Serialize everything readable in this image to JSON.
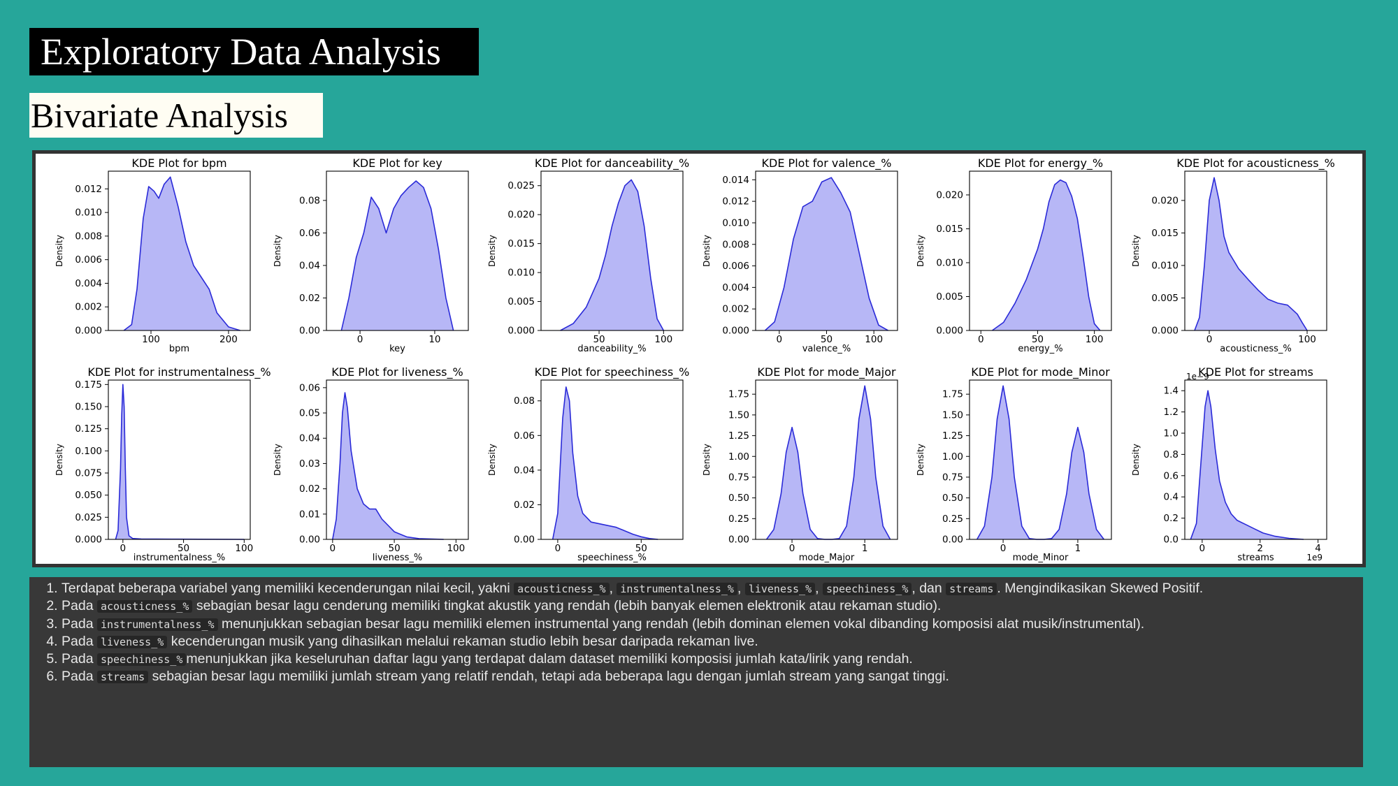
{
  "slide": {
    "title": "Exploratory Data Analysis",
    "subtitle": "Bivariate Analysis"
  },
  "colors": {
    "background": "#26a69a",
    "kde_fill": "#b3b3f5",
    "kde_line": "#2a2ad8"
  },
  "chart_data": [
    {
      "type": "area",
      "title": "KDE Plot for bpm",
      "xlabel": "bpm",
      "ylabel": "Density",
      "xlim": [
        45,
        228
      ],
      "ylim": [
        0,
        0.0135
      ],
      "xticks": [
        100,
        200
      ],
      "yticks": [
        0,
        0.002,
        0.004,
        0.006,
        0.008,
        0.01,
        0.012
      ],
      "ytick_labels": [
        "0.000",
        "0.002",
        "0.004",
        "0.006",
        "0.008",
        "0.010",
        "0.012"
      ],
      "offset_label": "",
      "series": [
        {
          "x": [
            65,
            75,
            82,
            90,
            97,
            104,
            110,
            117,
            125,
            135,
            145,
            155,
            165,
            175,
            185,
            200,
            215
          ],
          "y": [
            0,
            0.0005,
            0.0035,
            0.0095,
            0.0122,
            0.0118,
            0.0112,
            0.0124,
            0.013,
            0.0105,
            0.0075,
            0.0055,
            0.0045,
            0.0035,
            0.0015,
            0.0003,
            0
          ]
        }
      ]
    },
    {
      "type": "area",
      "title": "KDE Plot for key",
      "xlabel": "key",
      "ylabel": "Density",
      "xlim": [
        -4.5,
        14.5
      ],
      "ylim": [
        0,
        0.098
      ],
      "xticks": [
        0,
        10
      ],
      "yticks": [
        0,
        0.02,
        0.04,
        0.06,
        0.08
      ],
      "ytick_labels": [
        "0.00",
        "0.02",
        "0.04",
        "0.06",
        "0.08"
      ],
      "offset_label": "",
      "series": [
        {
          "x": [
            -2.5,
            -1.5,
            -0.5,
            0.5,
            1.5,
            2.5,
            3.5,
            4.5,
            5.5,
            6.5,
            7.5,
            8.5,
            9.5,
            10.5,
            11.5,
            12.5
          ],
          "y": [
            0,
            0.02,
            0.045,
            0.06,
            0.082,
            0.075,
            0.06,
            0.075,
            0.083,
            0.088,
            0.092,
            0.088,
            0.075,
            0.05,
            0.02,
            0
          ]
        }
      ]
    },
    {
      "type": "area",
      "title": "KDE Plot for danceability_%",
      "xlabel": "danceability_%",
      "ylabel": "Density",
      "xlim": [
        5,
        115
      ],
      "ylim": [
        0,
        0.0275
      ],
      "xticks": [
        50,
        100
      ],
      "yticks": [
        0,
        0.005,
        0.01,
        0.015,
        0.02,
        0.025
      ],
      "ytick_labels": [
        "0.000",
        "0.005",
        "0.010",
        "0.015",
        "0.020",
        "0.025"
      ],
      "offset_label": "",
      "series": [
        {
          "x": [
            20,
            30,
            40,
            50,
            55,
            60,
            65,
            70,
            75,
            80,
            85,
            90,
            95,
            100
          ],
          "y": [
            0,
            0.0012,
            0.004,
            0.009,
            0.013,
            0.018,
            0.022,
            0.025,
            0.026,
            0.024,
            0.018,
            0.009,
            0.002,
            0
          ]
        }
      ]
    },
    {
      "type": "area",
      "title": "KDE Plot for valence_%",
      "xlabel": "valence_%",
      "ylabel": "Density",
      "xlim": [
        -25,
        125
      ],
      "ylim": [
        0,
        0.0148
      ],
      "xticks": [
        0,
        50,
        100
      ],
      "yticks": [
        0,
        0.002,
        0.004,
        0.006,
        0.008,
        0.01,
        0.012,
        0.014
      ],
      "ytick_labels": [
        "0.000",
        "0.002",
        "0.004",
        "0.006",
        "0.008",
        "0.010",
        "0.012",
        "0.014"
      ],
      "offset_label": "",
      "series": [
        {
          "x": [
            -15,
            -5,
            5,
            15,
            25,
            35,
            45,
            55,
            65,
            75,
            85,
            95,
            105,
            115
          ],
          "y": [
            0,
            0.0008,
            0.004,
            0.0085,
            0.0115,
            0.012,
            0.0138,
            0.0142,
            0.0128,
            0.011,
            0.007,
            0.003,
            0.0005,
            0
          ]
        }
      ]
    },
    {
      "type": "area",
      "title": "KDE Plot for energy_%",
      "xlabel": "energy_%",
      "ylabel": "Density",
      "xlim": [
        -10,
        115
      ],
      "ylim": [
        0,
        0.0235
      ],
      "xticks": [
        0,
        50,
        100
      ],
      "yticks": [
        0,
        0.005,
        0.01,
        0.015,
        0.02
      ],
      "ytick_labels": [
        "0.000",
        "0.005",
        "0.010",
        "0.015",
        "0.020"
      ],
      "offset_label": "",
      "series": [
        {
          "x": [
            10,
            20,
            30,
            40,
            50,
            55,
            60,
            65,
            70,
            75,
            80,
            85,
            90,
            95,
            100,
            105
          ],
          "y": [
            0,
            0.0012,
            0.004,
            0.0075,
            0.012,
            0.015,
            0.019,
            0.0215,
            0.0222,
            0.0218,
            0.0198,
            0.0165,
            0.011,
            0.005,
            0.001,
            0
          ]
        }
      ]
    },
    {
      "type": "area",
      "title": "KDE Plot for acousticness_%",
      "xlabel": "acousticness_%",
      "ylabel": "Density",
      "xlim": [
        -25,
        120
      ],
      "ylim": [
        0,
        0.0245
      ],
      "xticks": [
        0,
        100
      ],
      "yticks": [
        0,
        0.005,
        0.01,
        0.015,
        0.02
      ],
      "ytick_labels": [
        "0.000",
        "0.005",
        "0.010",
        "0.015",
        "0.020"
      ],
      "offset_label": "",
      "series": [
        {
          "x": [
            -15,
            -10,
            -5,
            0,
            5,
            10,
            15,
            20,
            30,
            40,
            50,
            60,
            70,
            80,
            90,
            95,
            100
          ],
          "y": [
            0,
            0.002,
            0.01,
            0.02,
            0.0235,
            0.02,
            0.0145,
            0.012,
            0.0095,
            0.0078,
            0.0062,
            0.0048,
            0.0042,
            0.0039,
            0.0025,
            0.0012,
            0
          ]
        }
      ]
    },
    {
      "type": "area",
      "title": "KDE Plot for instrumentalness_%",
      "xlabel": "instrumentalness_%",
      "ylabel": "Density",
      "xlim": [
        -12,
        105
      ],
      "ylim": [
        0,
        0.18
      ],
      "xticks": [
        0,
        50,
        100
      ],
      "yticks": [
        0,
        0.025,
        0.05,
        0.075,
        0.1,
        0.125,
        0.15,
        0.175
      ],
      "ytick_labels": [
        "0.000",
        "0.025",
        "0.050",
        "0.075",
        "0.100",
        "0.125",
        "0.150",
        "0.175"
      ],
      "offset_label": "",
      "series": [
        {
          "x": [
            -6,
            -4,
            -2,
            -1,
            0,
            1,
            2,
            3,
            5,
            8,
            15,
            40,
            100
          ],
          "y": [
            0,
            0.01,
            0.08,
            0.14,
            0.175,
            0.15,
            0.08,
            0.025,
            0.004,
            0.001,
            0.0005,
            0.0002,
            0
          ]
        }
      ]
    },
    {
      "type": "area",
      "title": "KDE Plot for liveness_%",
      "xlabel": "liveness_%",
      "ylabel": "Density",
      "xlim": [
        -5,
        110
      ],
      "ylim": [
        0,
        0.063
      ],
      "xticks": [
        0,
        50,
        100
      ],
      "yticks": [
        0,
        0.01,
        0.02,
        0.03,
        0.04,
        0.05,
        0.06
      ],
      "ytick_labels": [
        "0.00",
        "0.01",
        "0.02",
        "0.03",
        "0.04",
        "0.05",
        "0.06"
      ],
      "offset_label": "",
      "series": [
        {
          "x": [
            0,
            3,
            6,
            8,
            10,
            12,
            15,
            20,
            25,
            30,
            35,
            40,
            50,
            60,
            70,
            90
          ],
          "y": [
            0,
            0.008,
            0.03,
            0.05,
            0.058,
            0.052,
            0.035,
            0.02,
            0.014,
            0.012,
            0.012,
            0.008,
            0.003,
            0.001,
            0.0003,
            0
          ]
        }
      ]
    },
    {
      "type": "area",
      "title": "KDE Plot for speechiness_%",
      "xlabel": "speechiness_%",
      "ylabel": "Density",
      "xlim": [
        -10,
        75
      ],
      "ylim": [
        0,
        0.092
      ],
      "xticks": [
        0,
        50
      ],
      "yticks": [
        0,
        0.02,
        0.04,
        0.06,
        0.08
      ],
      "ytick_labels": [
        "0.00",
        "0.02",
        "0.04",
        "0.06",
        "0.08"
      ],
      "offset_label": "",
      "series": [
        {
          "x": [
            -3,
            0,
            3,
            5,
            7,
            9,
            12,
            15,
            20,
            25,
            30,
            35,
            40,
            45,
            50,
            55,
            60
          ],
          "y": [
            0,
            0.015,
            0.07,
            0.088,
            0.08,
            0.05,
            0.025,
            0.015,
            0.01,
            0.009,
            0.008,
            0.007,
            0.005,
            0.003,
            0.0015,
            0.0005,
            0
          ]
        }
      ]
    },
    {
      "type": "area",
      "title": "KDE Plot for mode_Major",
      "xlabel": "mode_Major",
      "ylabel": "Density",
      "xlim": [
        -0.5,
        1.45
      ],
      "ylim": [
        0,
        1.92
      ],
      "xticks": [
        0,
        1
      ],
      "yticks": [
        0,
        0.25,
        0.5,
        0.75,
        1,
        1.25,
        1.5,
        1.75
      ],
      "ytick_labels": [
        "0.00",
        "0.25",
        "0.50",
        "0.75",
        "1.00",
        "1.25",
        "1.50",
        "1.75"
      ],
      "offset_label": "",
      "series": [
        {
          "x": [
            -0.35,
            -0.25,
            -0.15,
            -0.08,
            0,
            0.08,
            0.15,
            0.25,
            0.35,
            0.45,
            0.55,
            0.65,
            0.75,
            0.85,
            0.92,
            1,
            1.08,
            1.15,
            1.25,
            1.35
          ],
          "y": [
            0,
            0.12,
            0.55,
            1.05,
            1.35,
            1.05,
            0.55,
            0.12,
            0.01,
            0,
            0,
            0.01,
            0.16,
            0.75,
            1.45,
            1.85,
            1.45,
            0.75,
            0.16,
            0
          ]
        }
      ]
    },
    {
      "type": "area",
      "title": "KDE Plot for mode_Minor",
      "xlabel": "mode_Minor",
      "ylabel": "Density",
      "xlim": [
        -0.45,
        1.45
      ],
      "ylim": [
        0,
        1.92
      ],
      "xticks": [
        0,
        1
      ],
      "yticks": [
        0,
        0.25,
        0.5,
        0.75,
        1,
        1.25,
        1.5,
        1.75
      ],
      "ytick_labels": [
        "0.00",
        "0.25",
        "0.50",
        "0.75",
        "1.00",
        "1.25",
        "1.50",
        "1.75"
      ],
      "offset_label": "",
      "series": [
        {
          "x": [
            -0.35,
            -0.25,
            -0.15,
            -0.08,
            0,
            0.08,
            0.15,
            0.25,
            0.35,
            0.45,
            0.55,
            0.65,
            0.75,
            0.85,
            0.92,
            1,
            1.08,
            1.15,
            1.25,
            1.35
          ],
          "y": [
            0,
            0.16,
            0.75,
            1.45,
            1.85,
            1.45,
            0.75,
            0.16,
            0.01,
            0,
            0,
            0.01,
            0.12,
            0.55,
            1.05,
            1.35,
            1.05,
            0.55,
            0.12,
            0
          ]
        }
      ]
    },
    {
      "type": "area",
      "title": "KDE Plot for streams",
      "xlabel": "streams",
      "ylabel": "Density",
      "xlim": [
        -0.6,
        4.3
      ],
      "ylim": [
        0,
        1.5
      ],
      "xticks": [
        0,
        2,
        4
      ],
      "yticks": [
        0,
        0.2,
        0.4,
        0.6,
        0.8,
        1.0,
        1.2,
        1.4
      ],
      "ytick_labels": [
        "0.0",
        "0.2",
        "0.4",
        "0.6",
        "0.8",
        "1.0",
        "1.2",
        "1.4"
      ],
      "offset_label": "1e−9",
      "xoffset_label": "1e9",
      "series": [
        {
          "x": [
            -0.4,
            -0.2,
            -0.05,
            0.1,
            0.2,
            0.3,
            0.45,
            0.6,
            0.8,
            1,
            1.2,
            1.5,
            1.8,
            2.1,
            2.5,
            3,
            3.5
          ],
          "y": [
            0,
            0.15,
            0.7,
            1.25,
            1.4,
            1.25,
            0.85,
            0.55,
            0.35,
            0.24,
            0.18,
            0.14,
            0.1,
            0.06,
            0.03,
            0.01,
            0
          ]
        }
      ]
    }
  ],
  "notes": [
    {
      "parts": [
        {
          "t": "Terdapat beberapa variabel yang memiliki kecenderungan nilai kecil, yakni "
        },
        {
          "c": "acousticness_%"
        },
        {
          "t": ", "
        },
        {
          "c": "instrumentalness_%"
        },
        {
          "t": ", "
        },
        {
          "c": "liveness_%"
        },
        {
          "t": ", "
        },
        {
          "c": "speechiness_%"
        },
        {
          "t": ", dan "
        },
        {
          "c": "streams"
        },
        {
          "t": ". Mengindikasikan Skewed Positif."
        }
      ]
    },
    {
      "parts": [
        {
          "t": "Pada "
        },
        {
          "c": "acousticness_%"
        },
        {
          "t": " sebagian besar lagu cenderung memiliki tingkat akustik yang rendah (lebih banyak elemen elektronik atau rekaman studio)."
        }
      ]
    },
    {
      "parts": [
        {
          "t": "Pada "
        },
        {
          "c": "instrumentalness_%"
        },
        {
          "t": " menunjukkan sebagian besar lagu memiliki elemen instrumental yang rendah (lebih dominan elemen vokal dibanding komposisi alat musik/instrumental)."
        }
      ]
    },
    {
      "parts": [
        {
          "t": "Pada "
        },
        {
          "c": "liveness_%"
        },
        {
          "t": " kecenderungan musik yang dihasilkan melalui rekaman studio lebih besar daripada rekaman live."
        }
      ]
    },
    {
      "parts": [
        {
          "t": "Pada "
        },
        {
          "c": "speechiness_%"
        },
        {
          "t": "menunjukkan jika keseluruhan daftar lagu yang terdapat dalam dataset memiliki komposisi jumlah kata/lirik yang rendah."
        }
      ]
    },
    {
      "parts": [
        {
          "t": "Pada "
        },
        {
          "c": "streams"
        },
        {
          "t": " sebagian besar lagu memiliki jumlah stream yang relatif rendah, tetapi ada beberapa lagu dengan jumlah stream yang sangat tinggi."
        }
      ]
    }
  ]
}
